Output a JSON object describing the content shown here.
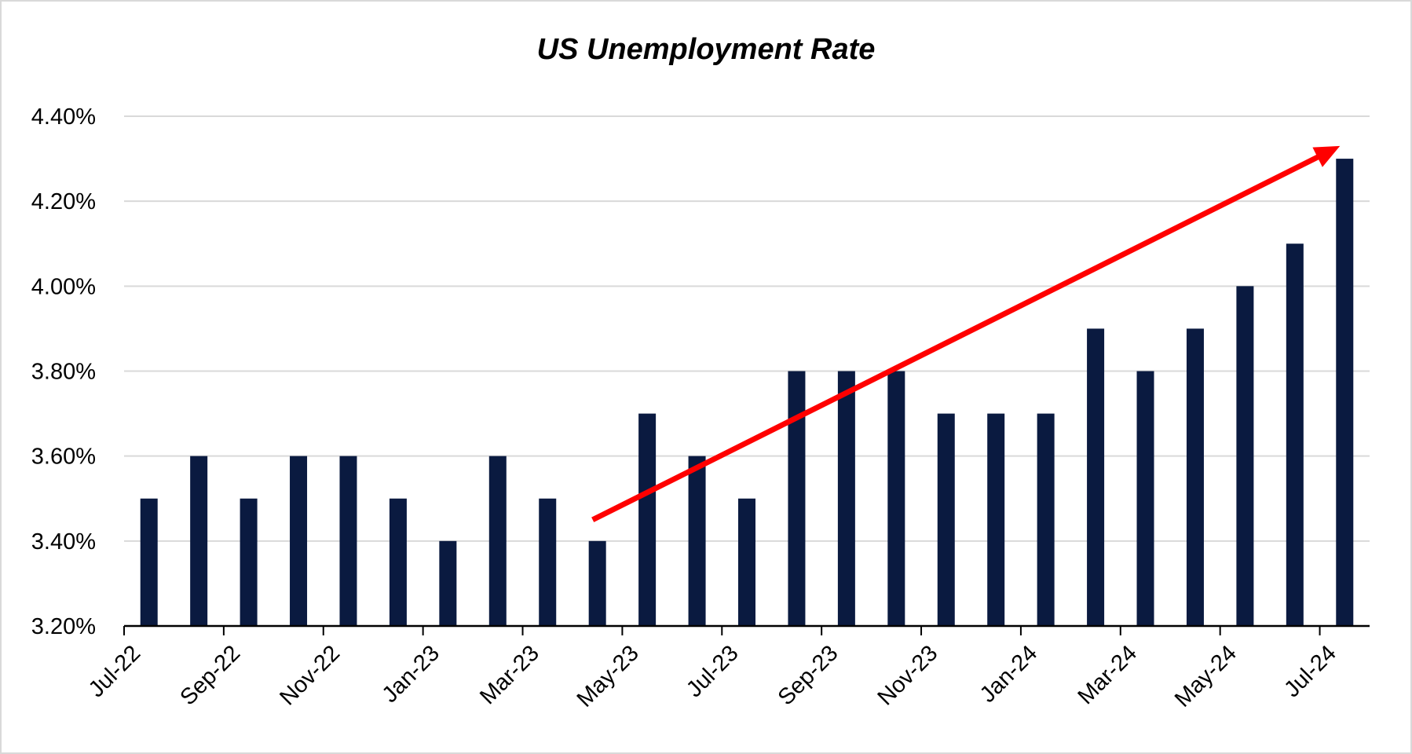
{
  "chart_data": {
    "type": "bar",
    "title": "US Unemployment Rate",
    "xlabel": "",
    "ylabel": "",
    "ylim": [
      3.2,
      4.4
    ],
    "yticks": [
      "3.20%",
      "3.40%",
      "3.60%",
      "3.80%",
      "4.00%",
      "4.20%",
      "4.40%"
    ],
    "ytick_values": [
      3.2,
      3.4,
      3.6,
      3.8,
      4.0,
      4.2,
      4.4
    ],
    "categories": [
      "Jul-22",
      "Aug-22",
      "Sep-22",
      "Oct-22",
      "Nov-22",
      "Dec-22",
      "Jan-23",
      "Feb-23",
      "Mar-23",
      "Apr-23",
      "May-23",
      "Jun-23",
      "Jul-23",
      "Aug-23",
      "Sep-23",
      "Oct-23",
      "Nov-23",
      "Dec-23",
      "Jan-24",
      "Feb-24",
      "Mar-24",
      "Apr-24",
      "May-24",
      "Jun-24",
      "Jul-24"
    ],
    "xtick_labels": [
      "Jul-22",
      "Sep-22",
      "Nov-22",
      "Jan-23",
      "Mar-23",
      "May-23",
      "Jul-23",
      "Sep-23",
      "Nov-23",
      "Jan-24",
      "Mar-24",
      "May-24",
      "Jul-24"
    ],
    "values": [
      3.5,
      3.6,
      3.5,
      3.6,
      3.6,
      3.5,
      3.4,
      3.6,
      3.5,
      3.4,
      3.7,
      3.6,
      3.5,
      3.8,
      3.8,
      3.8,
      3.7,
      3.7,
      3.7,
      3.9,
      3.8,
      3.9,
      4.0,
      4.1,
      4.3
    ],
    "bar_color": "#0a1a40",
    "grid": true,
    "legend": "none",
    "annotation": {
      "type": "trend-arrow",
      "color": "#ff0000",
      "from": {
        "x": "Apr-23",
        "y": 3.45
      },
      "to": {
        "x": "Jul-24",
        "y": 4.33
      }
    }
  }
}
